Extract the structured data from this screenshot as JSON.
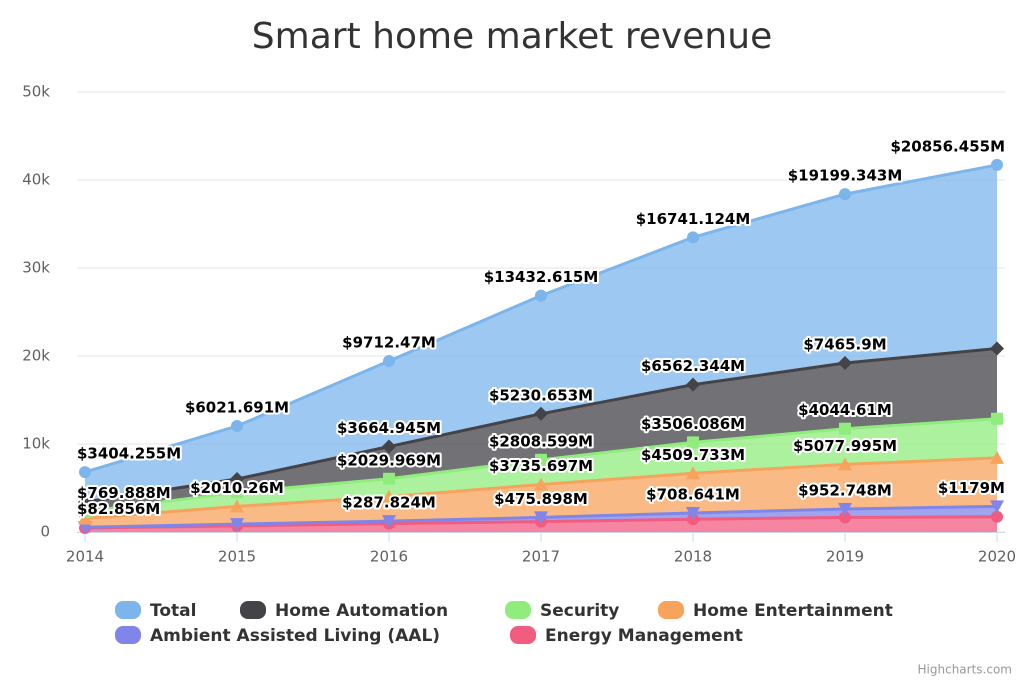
{
  "chart_data": {
    "type": "area",
    "stacked": true,
    "title": "Smart home market revenue",
    "categories": [
      "2014",
      "2015",
      "2016",
      "2017",
      "2018",
      "2019",
      "2020"
    ],
    "ylim": [
      0,
      50000
    ],
    "yticks": [
      0,
      {
        "value": 10000,
        "label": "10k"
      },
      {
        "value": 20000,
        "label": "20k"
      },
      {
        "value": 30000,
        "label": "30k"
      },
      {
        "value": 40000,
        "label": "40k"
      },
      {
        "value": 50000,
        "label": "50k"
      }
    ],
    "grid": true,
    "series": [
      {
        "name": "Total",
        "color": "#7cb5ec",
        "marker": "circle",
        "values": [
          3404.255,
          6021.691,
          9712.47,
          13432.615,
          16741.124,
          19199.343,
          20856.455
        ],
        "value_labels": [
          "$3404.255M",
          "$6021.691M",
          "$9712.47M",
          "$13432.615M",
          "$16741.124M",
          "$19199.343M",
          "$20856.455M"
        ]
      },
      {
        "name": "Home Automation",
        "color": "#434348",
        "marker": "diamond",
        "values": [
          1101.511,
          1511.431,
          3664.945,
          5230.653,
          6562.344,
          7465.9,
          7990
        ],
        "value_labels": [
          null,
          null,
          "$3664.945M",
          "$5230.653M",
          "$6562.344M",
          "$7465.9M",
          null
        ]
      },
      {
        "name": "Security",
        "color": "#90ed7d",
        "marker": "square",
        "values": [
          769.888,
          1600,
          2029.969,
          2808.599,
          3506.086,
          4044.61,
          4450
        ],
        "value_labels": [
          "$769.888M",
          null,
          "$2029.969M",
          "$2808.599M",
          "$3506.086M",
          "$4044.61M",
          null
        ]
      },
      {
        "name": "Home Entertainment",
        "color": "#f7a35c",
        "marker": "triangle",
        "values": [
          1000,
          2010.26,
          2779.732,
          3735.697,
          4509.733,
          5077.995,
          5500
        ],
        "value_labels": [
          null,
          "$2010.26M",
          null,
          "$3735.697M",
          "$4509.733M",
          "$5077.995M",
          null
        ]
      },
      {
        "name": "Ambient Assisted Living (AAL)",
        "color": "#8085e9",
        "marker": "triangle-down",
        "values": [
          82.856,
          200,
          287.824,
          475.898,
          708.641,
          952.748,
          1179
        ],
        "value_labels": [
          "$82.856M",
          null,
          "$287.824M",
          "$475.898M",
          "$708.641M",
          "$952.748M",
          "$1179M"
        ]
      },
      {
        "name": "Energy Management",
        "color": "#f15c80",
        "marker": "circle",
        "values": [
          450,
          700,
          950,
          1181.768,
          1454.32,
          1658.09,
          1737.455
        ]
      }
    ],
    "credits": "Highcharts.com"
  }
}
